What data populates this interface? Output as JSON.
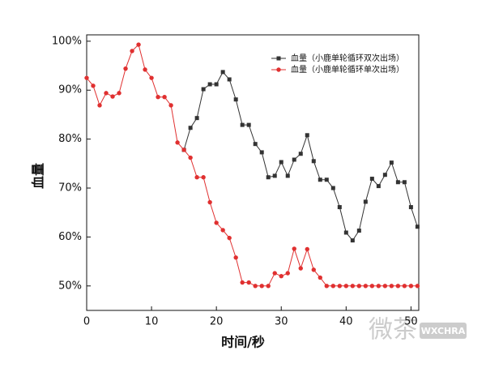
{
  "chart_data": {
    "type": "line",
    "x_label": "时间/秒",
    "y_label": "血量",
    "x": [
      0,
      1,
      2,
      3,
      4,
      5,
      6,
      7,
      8,
      9,
      10,
      11,
      12,
      13,
      14,
      15,
      16,
      17,
      18,
      19,
      20,
      21,
      22,
      23,
      24,
      25,
      26,
      27,
      28,
      29,
      30,
      31,
      32,
      33,
      34,
      35,
      36,
      37,
      38,
      39,
      40,
      41,
      42,
      43,
      44,
      45,
      46,
      47,
      48,
      49,
      50,
      51
    ],
    "series": [
      {
        "name": "血量（小鹿单轮循环双次出场）",
        "color": "#333333",
        "marker": "square",
        "values": [
          null,
          null,
          null,
          null,
          null,
          null,
          null,
          null,
          null,
          null,
          null,
          null,
          null,
          null,
          null,
          77.8,
          82.3,
          84.3,
          90.2,
          91.2,
          91.2,
          93.7,
          92.2,
          88.1,
          82.9,
          82.9,
          79.0,
          77.3,
          72.2,
          72.5,
          75.3,
          72.5,
          75.8,
          77.0,
          80.8,
          75.5,
          71.7,
          71.7,
          70.0,
          66.1,
          60.9,
          59.3,
          61.3,
          67.2,
          71.9,
          70.4,
          72.7,
          75.2,
          71.2,
          71.2,
          66.1,
          62.1
        ]
      },
      {
        "name": "血量（小鹿单轮循环单次出场）",
        "color": "#e03030",
        "marker": "circle",
        "values": [
          92.5,
          90.9,
          86.9,
          89.4,
          88.7,
          89.4,
          94.4,
          98.0,
          99.3,
          94.2,
          92.5,
          88.6,
          88.6,
          86.9,
          79.3,
          77.8,
          76.2,
          72.2,
          72.2,
          67.1,
          62.9,
          61.4,
          59.8,
          55.8,
          50.7,
          50.7,
          50,
          50,
          50,
          52.6,
          52,
          52.6,
          57.6,
          53.6,
          57.5,
          53.3,
          51.7,
          50,
          50,
          50,
          50,
          50,
          50,
          50,
          50,
          50,
          50,
          50,
          50,
          50,
          50,
          50
        ]
      }
    ],
    "xlim": [
      0,
      51.2
    ],
    "ylim": [
      45,
      101.3
    ],
    "xticks": [
      0,
      10,
      20,
      30,
      40,
      50
    ],
    "yticks": [
      {
        "value": 50,
        "label": "50%"
      },
      {
        "value": 60,
        "label": "60%"
      },
      {
        "value": 70,
        "label": "70%"
      },
      {
        "value": 80,
        "label": "80%"
      },
      {
        "value": 90,
        "label": "90%"
      },
      {
        "value": 100,
        "label": "100%"
      }
    ],
    "grid": false,
    "legend": "upper right",
    "annotations": [
      "微茶",
      "WXCHRA"
    ]
  }
}
